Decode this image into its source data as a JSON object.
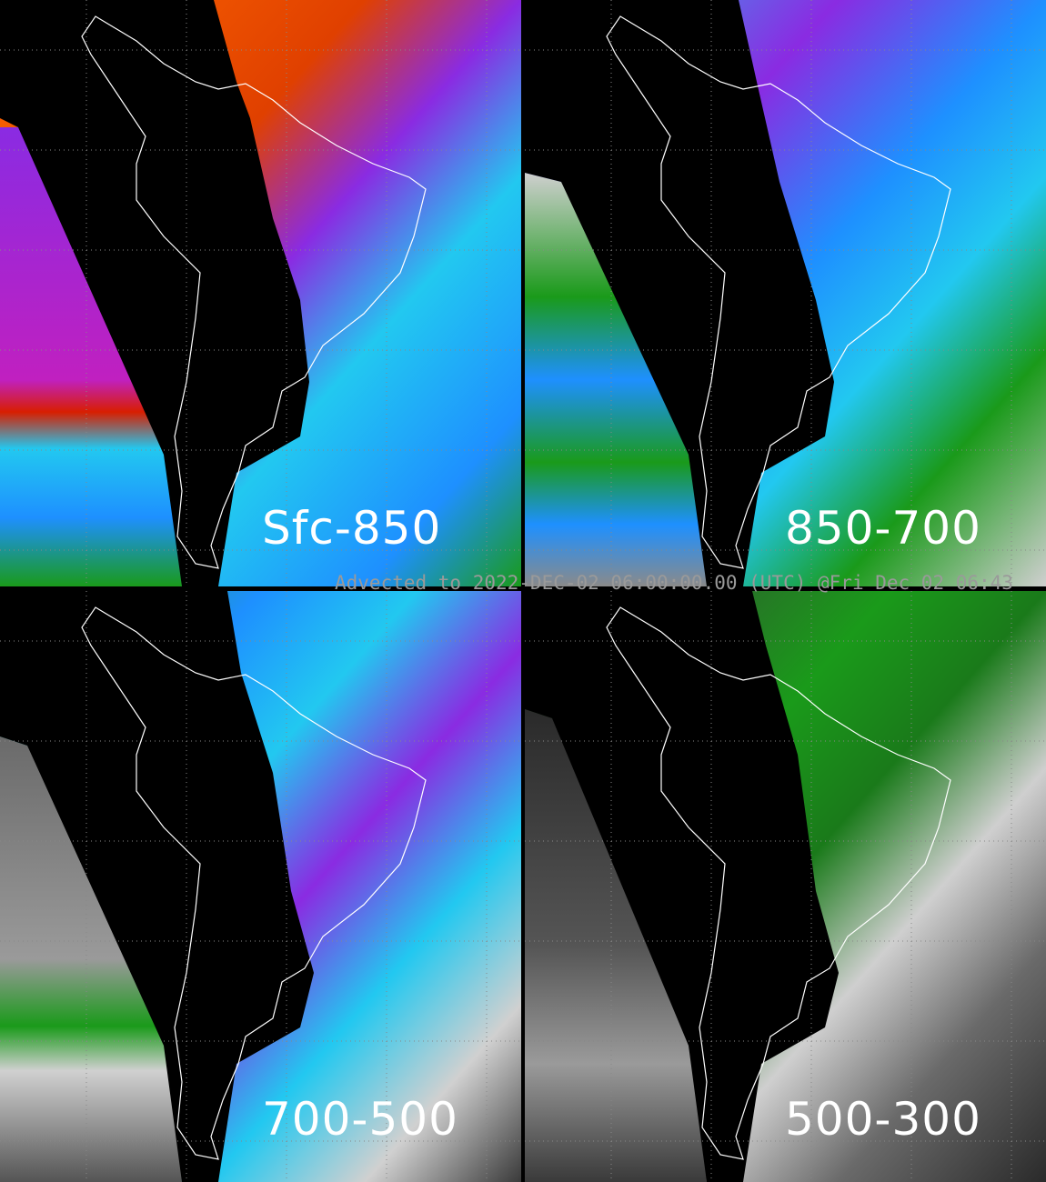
{
  "caption": "Advected to 2022-DEC-02 06:00:00.00 (UTC) @Fri Dec 02 06:43",
  "panels": [
    {
      "label": "Sfc-850",
      "colors": [
        "#ff6a00",
        "#d81e00",
        "#8a2be2",
        "#22c8f0",
        "#1e90ff",
        "#1a9a1a"
      ]
    },
    {
      "label": "850-700",
      "colors": [
        "#22c8f0",
        "#1e90ff",
        "#8a2be2",
        "#1a9a1a",
        "#cfcfcf",
        "#555555"
      ]
    },
    {
      "label": "700-500",
      "colors": [
        "#22c8f0",
        "#1e90ff",
        "#8a2be2",
        "#1a9a1a",
        "#d0d0d0",
        "#3a3a3a"
      ]
    },
    {
      "label": "500-300",
      "colors": [
        "#1a9a1a",
        "#cfcfcf",
        "#6a6a6a",
        "#2a2a2a"
      ]
    }
  ]
}
